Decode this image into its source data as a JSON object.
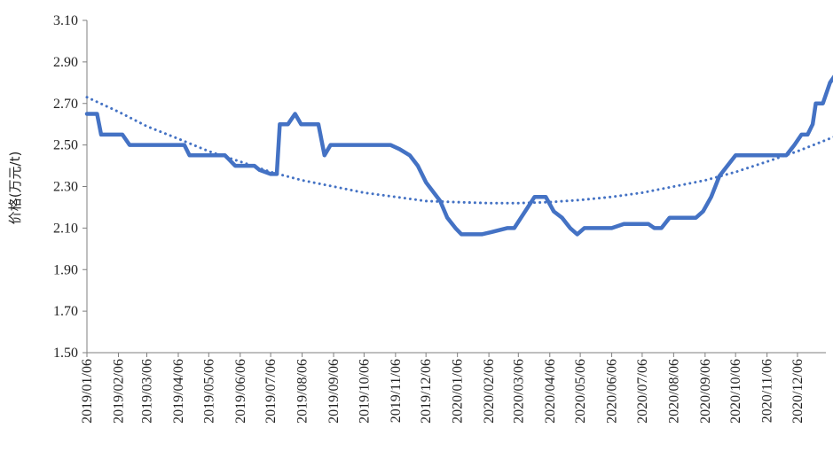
{
  "chart_data": {
    "type": "line",
    "title": "",
    "xlabel": "",
    "ylabel": "价格(万元/t)",
    "ylim": [
      1.5,
      3.1
    ],
    "yticks": [
      "1.50",
      "1.70",
      "1.90",
      "2.10",
      "2.30",
      "2.50",
      "2.70",
      "2.90",
      "3.10"
    ],
    "xlim": [
      "2019-01-06",
      "2020-12-31"
    ],
    "xticks": [
      "2019/01/06",
      "2019/02/06",
      "2019/03/06",
      "2019/04/06",
      "2019/05/06",
      "2019/06/06",
      "2019/07/06",
      "2019/08/06",
      "2019/09/06",
      "2019/10/06",
      "2019/11/06",
      "2019/12/06",
      "2020/01/06",
      "2020/02/06",
      "2020/03/06",
      "2020/04/06",
      "2020/05/06",
      "2020/06/06",
      "2020/07/06",
      "2020/08/06",
      "2020/09/06",
      "2020/10/06",
      "2020/11/06",
      "2020/12/06"
    ],
    "grid": false,
    "legend": "none",
    "colors": {
      "series": "#4472C4",
      "trend": "#4472C4"
    },
    "series": [
      {
        "style": "solid",
        "points": [
          [
            "2019-01-06",
            2.65
          ],
          [
            "2019-01-16",
            2.65
          ],
          [
            "2019-01-20",
            2.55
          ],
          [
            "2019-02-10",
            2.55
          ],
          [
            "2019-02-17",
            2.5
          ],
          [
            "2019-04-12",
            2.5
          ],
          [
            "2019-04-17",
            2.45
          ],
          [
            "2019-05-22",
            2.45
          ],
          [
            "2019-06-01",
            2.4
          ],
          [
            "2019-06-20",
            2.4
          ],
          [
            "2019-06-25",
            2.38
          ],
          [
            "2019-07-06",
            2.36
          ],
          [
            "2019-07-12",
            2.36
          ],
          [
            "2019-07-15",
            2.6
          ],
          [
            "2019-07-23",
            2.6
          ],
          [
            "2019-07-30",
            2.65
          ],
          [
            "2019-08-05",
            2.6
          ],
          [
            "2019-08-22",
            2.6
          ],
          [
            "2019-08-28",
            2.45
          ],
          [
            "2019-09-03",
            2.5
          ],
          [
            "2019-11-01",
            2.5
          ],
          [
            "2019-11-10",
            2.48
          ],
          [
            "2019-11-20",
            2.45
          ],
          [
            "2019-11-28",
            2.4
          ],
          [
            "2019-12-06",
            2.32
          ],
          [
            "2019-12-20",
            2.23
          ],
          [
            "2019-12-27",
            2.15
          ],
          [
            "2020-01-04",
            2.1
          ],
          [
            "2020-01-10",
            2.07
          ],
          [
            "2020-01-30",
            2.07
          ],
          [
            "2020-02-08",
            2.08
          ],
          [
            "2020-02-24",
            2.1
          ],
          [
            "2020-03-02",
            2.1
          ],
          [
            "2020-03-22",
            2.25
          ],
          [
            "2020-04-02",
            2.25
          ],
          [
            "2020-04-10",
            2.18
          ],
          [
            "2020-04-18",
            2.15
          ],
          [
            "2020-04-26",
            2.1
          ],
          [
            "2020-05-03",
            2.07
          ],
          [
            "2020-05-10",
            2.1
          ],
          [
            "2020-05-28",
            2.1
          ],
          [
            "2020-06-06",
            2.1
          ],
          [
            "2020-06-18",
            2.12
          ],
          [
            "2020-07-12",
            2.12
          ],
          [
            "2020-07-18",
            2.1
          ],
          [
            "2020-07-25",
            2.1
          ],
          [
            "2020-08-02",
            2.15
          ],
          [
            "2020-08-28",
            2.15
          ],
          [
            "2020-09-04",
            2.18
          ],
          [
            "2020-09-12",
            2.25
          ],
          [
            "2020-09-20",
            2.35
          ],
          [
            "2020-10-06",
            2.45
          ],
          [
            "2020-11-25",
            2.45
          ],
          [
            "2020-12-03",
            2.5
          ],
          [
            "2020-12-10",
            2.55
          ],
          [
            "2020-12-16",
            2.55
          ],
          [
            "2020-12-21",
            2.6
          ],
          [
            "2020-12-24",
            2.7
          ],
          [
            "2020-12-31",
            2.7
          ],
          [
            "2021-01-07",
            2.8
          ],
          [
            "2021-01-14",
            2.85
          ]
        ]
      },
      {
        "style": "dotted",
        "points": [
          [
            "2019-01-06",
            2.73
          ],
          [
            "2019-02-06",
            2.66
          ],
          [
            "2019-03-06",
            2.59
          ],
          [
            "2019-04-06",
            2.53
          ],
          [
            "2019-05-06",
            2.47
          ],
          [
            "2019-06-06",
            2.42
          ],
          [
            "2019-07-06",
            2.37
          ],
          [
            "2019-08-06",
            2.33
          ],
          [
            "2019-09-06",
            2.3
          ],
          [
            "2019-10-06",
            2.27
          ],
          [
            "2019-11-06",
            2.25
          ],
          [
            "2019-12-06",
            2.23
          ],
          [
            "2020-01-06",
            2.225
          ],
          [
            "2020-02-06",
            2.22
          ],
          [
            "2020-03-06",
            2.22
          ],
          [
            "2020-04-06",
            2.225
          ],
          [
            "2020-05-06",
            2.235
          ],
          [
            "2020-06-06",
            2.25
          ],
          [
            "2020-07-06",
            2.27
          ],
          [
            "2020-08-06",
            2.3
          ],
          [
            "2020-09-06",
            2.33
          ],
          [
            "2020-10-06",
            2.37
          ],
          [
            "2020-11-06",
            2.42
          ],
          [
            "2020-12-06",
            2.47
          ],
          [
            "2021-01-14",
            2.545
          ]
        ]
      }
    ]
  }
}
